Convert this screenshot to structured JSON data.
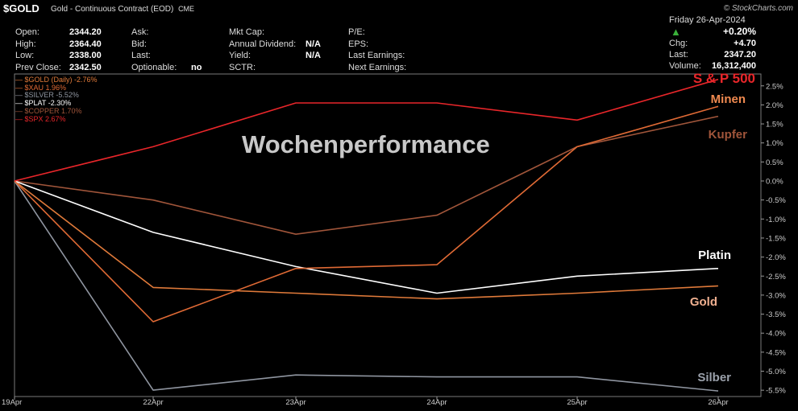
{
  "header": {
    "symbol": "$GOLD",
    "description": "Gold - Continuous Contract (EOD)",
    "exchange": "CME",
    "brand": "© StockCharts.com"
  },
  "quote": {
    "left": [
      {
        "label": "Open:",
        "value": "2344.20"
      },
      {
        "label": "High:",
        "value": "2364.40"
      },
      {
        "label": "Low:",
        "value": "2338.00"
      },
      {
        "label": "Prev Close:",
        "value": "2342.50"
      }
    ],
    "mid": [
      {
        "label": "Ask:",
        "value": ""
      },
      {
        "label": "Bid:",
        "value": ""
      },
      {
        "label": "Last:",
        "value": ""
      },
      {
        "label": "Optionable:",
        "value": "no"
      }
    ],
    "fund": [
      {
        "label": "Mkt Cap:",
        "value": ""
      },
      {
        "label": "Annual Dividend:",
        "value": "N/A"
      },
      {
        "label": "Yield:",
        "value": "N/A"
      },
      {
        "label": "SCTR:",
        "value": ""
      }
    ],
    "earn": [
      "P/E:",
      "EPS:",
      "Last Earnings:",
      "Next Earnings:"
    ],
    "box": {
      "date": "Friday  26-Apr-2024",
      "change_pct": "+0.20%",
      "chg_label": "Chg:",
      "chg_value": "+4.70",
      "last_label": "Last:",
      "last_value": "2347.20",
      "volume_label": "Volume:",
      "volume_value": "16,312,400"
    }
  },
  "legend": [
    {
      "text": "$GOLD (Daily) -2.76%",
      "color": "#e07a3a"
    },
    {
      "text": "$XAU 1.96%",
      "color": "#e06a35"
    },
    {
      "text": "$SILVER -5.52%",
      "color": "#8f95a0"
    },
    {
      "text": "$PLAT -2.30%",
      "color": "#ffffff"
    },
    {
      "text": "$COPPER 1.70%",
      "color": "#a0553a"
    },
    {
      "text": "$SPX 2.67%",
      "color": "#e8262a"
    }
  ],
  "chart_data": {
    "type": "line",
    "title": "Wochenperformance",
    "x": [
      "19Apr",
      "22Apr",
      "23Apr",
      "24Apr",
      "25Apr",
      "26Apr"
    ],
    "ylim": [
      -5.7,
      2.7
    ],
    "yticks": [
      2.5,
      2.0,
      1.5,
      1.0,
      0.5,
      0.0,
      -0.5,
      -1.0,
      -1.5,
      -2.0,
      -2.5,
      -3.0,
      -3.5,
      -4.0,
      -4.5,
      -5.0,
      -5.5
    ],
    "ytick_labels": [
      "2.5%",
      "2.0%",
      "1.5%",
      "1.0%",
      "0.5%",
      "0.0%",
      "-0.5%",
      "-1.0%",
      "-1.5%",
      "-2.0%",
      "-2.5%",
      "-3.0%",
      "-3.5%",
      "-4.0%",
      "-4.5%",
      "-5.0%",
      "-5.5%"
    ],
    "series": [
      {
        "name": "Silber",
        "color": "#8f95a0",
        "values": [
          0,
          -5.5,
          -5.1,
          -5.15,
          -5.15,
          -5.52
        ]
      },
      {
        "name": "Kupfer",
        "color": "#a0553a",
        "values": [
          0,
          -0.5,
          -1.4,
          -0.9,
          0.9,
          1.7
        ]
      },
      {
        "name": "Gold",
        "color": "#e07a3a",
        "values": [
          0,
          -2.8,
          -2.95,
          -3.1,
          -2.95,
          -2.76
        ]
      },
      {
        "name": "Platin",
        "color": "#ffffff",
        "values": [
          0,
          -1.35,
          -2.25,
          -2.95,
          -2.5,
          -2.3
        ]
      },
      {
        "name": "Minen",
        "color": "#e06a35",
        "values": [
          0,
          -3.7,
          -2.3,
          -2.2,
          0.9,
          1.96
        ]
      },
      {
        "name": "S & P 500",
        "color": "#e8262a",
        "values": [
          0,
          0.9,
          2.05,
          2.05,
          1.6,
          2.67
        ]
      }
    ]
  }
}
